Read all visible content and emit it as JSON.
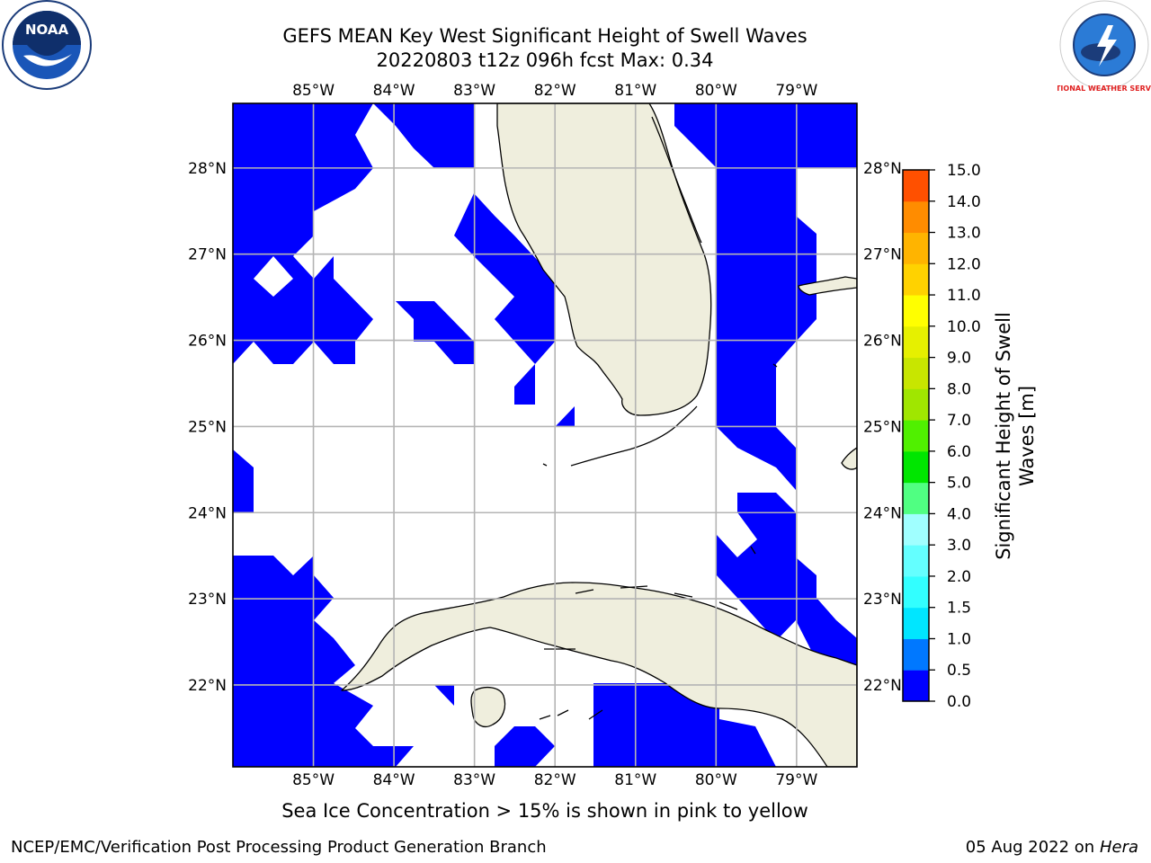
{
  "title": {
    "line1": "GEFS MEAN Key West Significant Height of Swell Waves",
    "line2": "20220803 t12z 096h fcst   Max: 0.34"
  },
  "map": {
    "lon_range": [
      -86,
      -78.25
    ],
    "lat_range": [
      21.05,
      28.75
    ],
    "lon_ticks": [
      "85°W",
      "84°W",
      "83°W",
      "82°W",
      "81°W",
      "80°W",
      "79°W"
    ],
    "lat_ticks": [
      "28°N",
      "27°N",
      "26°N",
      "25°N",
      "24°N",
      "23°N",
      "22°N"
    ],
    "land_color": "#efeedd",
    "swell_color": "#0000ff",
    "grid_color": "#b4b4b4"
  },
  "colorbar": {
    "label_line1": "Significant Height of Swell",
    "label_line2": "Waves [m]",
    "ticks": [
      "0.0",
      "0.5",
      "1.0",
      "1.5",
      "2.0",
      "3.0",
      "4.0",
      "5.0",
      "6.0",
      "7.0",
      "8.0",
      "9.0",
      "10.0",
      "11.0",
      "12.0",
      "13.0",
      "14.0",
      "15.0"
    ],
    "colors": [
      "#0000ff",
      "#0078ff",
      "#00e6ff",
      "#32ffff",
      "#64ffff",
      "#a0ffff",
      "#50ff82",
      "#00e600",
      "#50f000",
      "#a0e600",
      "#c8e600",
      "#e6f000",
      "#ffff00",
      "#ffd200",
      "#ffb400",
      "#ff8c00",
      "#ff5000",
      "#ff1400"
    ]
  },
  "logos": {
    "left_icon": "noaa-logo-icon",
    "left_text": "NOAA",
    "right_icon": "nws-logo-icon",
    "right_text": "NATIONAL WEATHER SERVICE"
  },
  "footer": {
    "note": "Sea Ice Concentration > 15% is shown in pink to yellow",
    "credit": "NCEP/EMC/Verification Post Processing Product Generation Branch",
    "date": "05 Aug 2022 on",
    "host": "Hera"
  }
}
